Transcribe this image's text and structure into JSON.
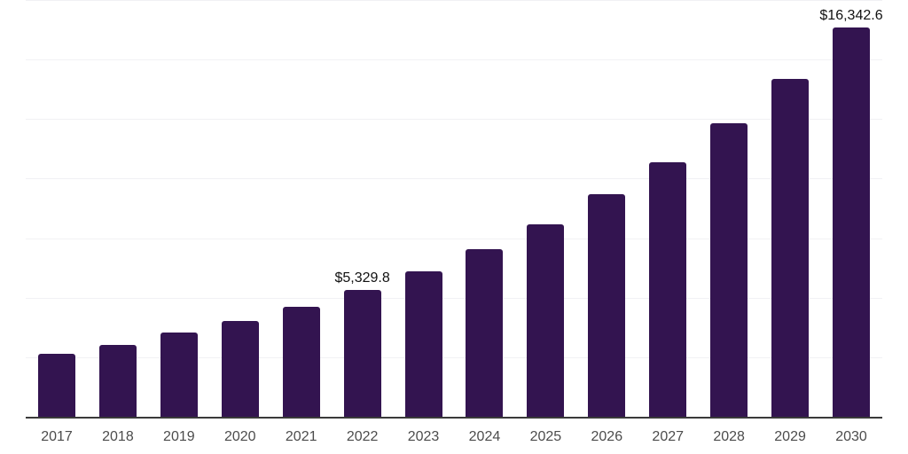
{
  "chart_data": {
    "type": "bar",
    "title": "",
    "xlabel": "",
    "ylabel": "",
    "categories": [
      "2017",
      "2018",
      "2019",
      "2020",
      "2021",
      "2022",
      "2023",
      "2024",
      "2025",
      "2026",
      "2027",
      "2028",
      "2029",
      "2030"
    ],
    "values": [
      2660,
      3030,
      3520,
      4020,
      4620,
      5329.8,
      6110,
      7040,
      8080,
      9330,
      10700,
      12320,
      14180,
      16342.6
    ],
    "data_labels": [
      {
        "category": "2022",
        "text": "$5,329.8"
      },
      {
        "category": "2030",
        "text": "$16,342.6"
      }
    ],
    "ylim": [
      0,
      17500
    ],
    "gridline_step": 2500,
    "grid": "horizontal-only",
    "y_axis_labels": "none",
    "legend": "none",
    "colors": {
      "background": "#ffffff",
      "bar": "#331450",
      "axis_line": "#3a3a3a",
      "gridline": "#f1f1f4",
      "data_label_text": "#111111",
      "tick_label_text": "#4c4c4c"
    }
  }
}
